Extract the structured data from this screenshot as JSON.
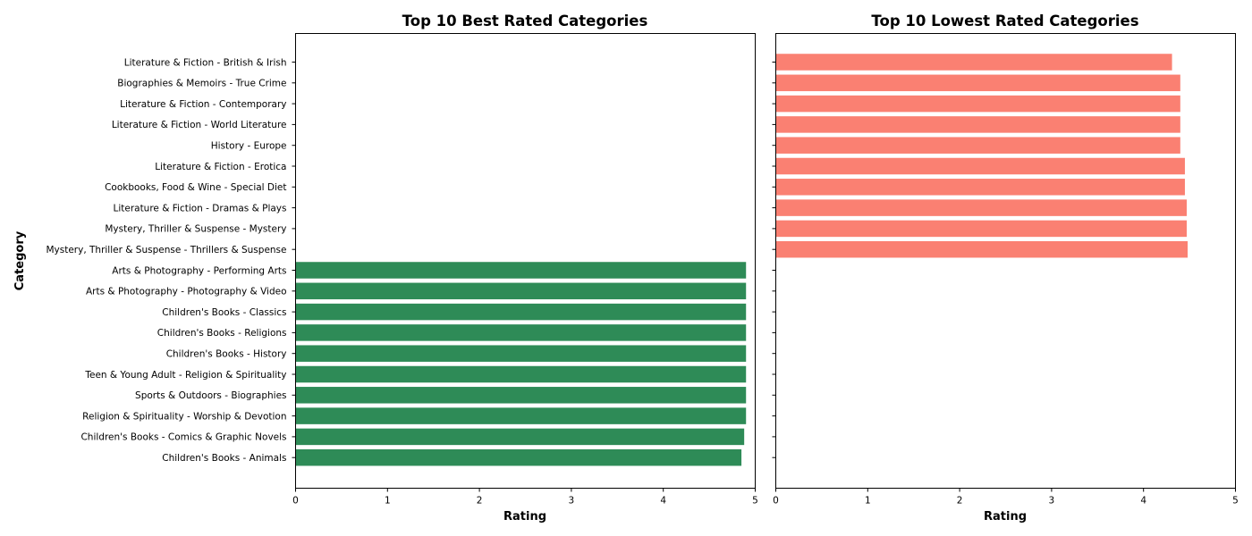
{
  "figure": {
    "ylabel": "Category"
  },
  "chart_data": [
    {
      "type": "bar",
      "orientation": "horizontal",
      "title": "Top 10 Best Rated Categories",
      "xlabel": "Rating",
      "ylabel": "Category",
      "xlim": [
        0,
        5
      ],
      "xticks": [
        0,
        1,
        2,
        3,
        4,
        5
      ],
      "grid": false,
      "color": "#2e8b57",
      "categories": [
        "Literature & Fiction - British & Irish",
        "Biographies & Memoirs - True Crime",
        "Literature & Fiction - Contemporary",
        "Literature & Fiction - World Literature",
        "History - Europe",
        "Literature & Fiction - Erotica",
        "Cookbooks, Food & Wine - Special Diet",
        "Literature & Fiction - Dramas & Plays",
        "Mystery, Thriller & Suspense - Mystery",
        "Mystery, Thriller & Suspense - Thrillers & Suspense",
        "Arts & Photography - Performing Arts",
        "Arts & Photography - Photography & Video",
        "Children's Books - Classics",
        "Children's Books - Religions",
        "Children's Books - History",
        "Teen & Young Adult - Religion & Spirituality",
        "Sports & Outdoors - Biographies",
        "Religion & Spirituality - Worship & Devotion",
        "Children's Books - Comics & Graphic Novels",
        "Children's Books - Animals"
      ],
      "values": [
        null,
        null,
        null,
        null,
        null,
        null,
        null,
        null,
        null,
        null,
        4.9,
        4.9,
        4.9,
        4.9,
        4.9,
        4.9,
        4.9,
        4.9,
        4.88,
        4.85
      ]
    },
    {
      "type": "bar",
      "orientation": "horizontal",
      "title": "Top 10 Lowest Rated Categories",
      "xlabel": "Rating",
      "xlim": [
        0,
        5
      ],
      "xticks": [
        0,
        1,
        2,
        3,
        4,
        5
      ],
      "shared_y": true,
      "grid": false,
      "color": "#fa8072",
      "categories": [
        "Literature & Fiction - British & Irish",
        "Biographies & Memoirs - True Crime",
        "Literature & Fiction - Contemporary",
        "Literature & Fiction - World Literature",
        "History - Europe",
        "Literature & Fiction - Erotica",
        "Cookbooks, Food & Wine - Special Diet",
        "Literature & Fiction - Dramas & Plays",
        "Mystery, Thriller & Suspense - Mystery",
        "Mystery, Thriller & Suspense - Thrillers & Suspense",
        "Arts & Photography - Performing Arts",
        "Arts & Photography - Photography & Video",
        "Children's Books - Classics",
        "Children's Books - Religions",
        "Children's Books - History",
        "Teen & Young Adult - Religion & Spirituality",
        "Sports & Outdoors - Biographies",
        "Religion & Spirituality - Worship & Devotion",
        "Children's Books - Comics & Graphic Novels",
        "Children's Books - Animals"
      ],
      "values": [
        4.31,
        4.4,
        4.4,
        4.4,
        4.4,
        4.45,
        4.45,
        4.47,
        4.47,
        4.48,
        null,
        null,
        null,
        null,
        null,
        null,
        null,
        null,
        null,
        null
      ]
    }
  ]
}
